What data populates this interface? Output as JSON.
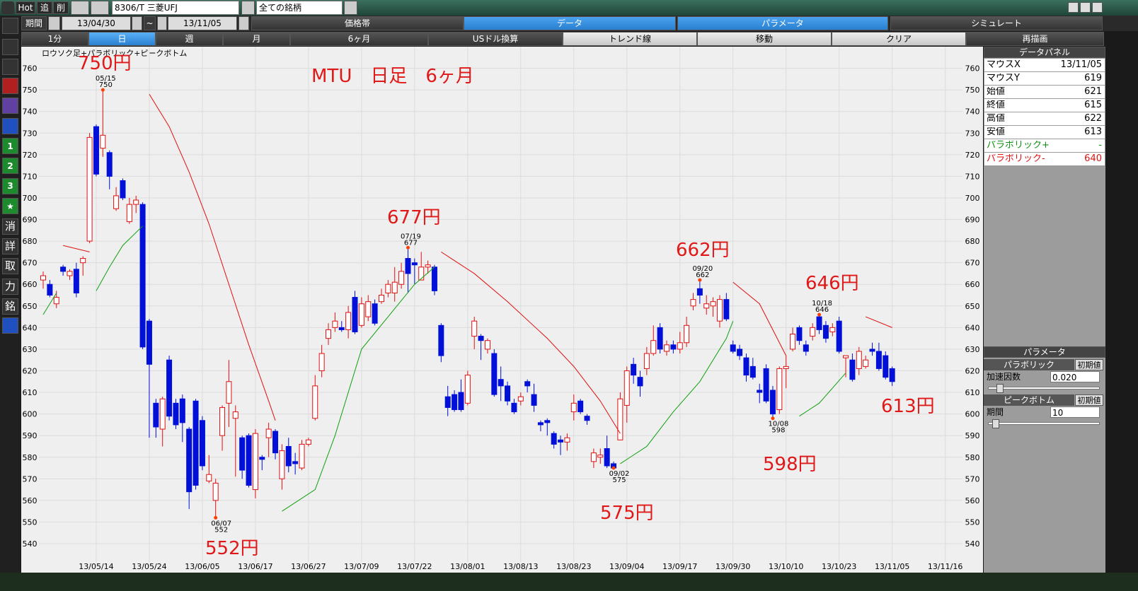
{
  "toolbar": {
    "hot": "Hot",
    "add": "追",
    "del": "削",
    "symbol": "8306/T 三菱UFJ",
    "universe": "全ての銘柄"
  },
  "period_bar": {
    "label": "期間",
    "from": "13/04/30",
    "sep": "~",
    "to": "13/11/05",
    "tabs": [
      "価格帯",
      "データ",
      "パラメータ",
      "シミュレート"
    ]
  },
  "buttons": [
    "1分",
    "日",
    "週",
    "月",
    "6ヶ月",
    "USドル換算",
    "トレンド線",
    "移動",
    "クリア",
    "再描画"
  ],
  "sidebar": [
    "1",
    "2",
    "3",
    "★",
    "消",
    "詳",
    "取",
    "力",
    "銘"
  ],
  "chart_data": {
    "type": "candlestick",
    "title": "ロウソク足+パラボリック+ピークボトム",
    "up_color": "#e01010",
    "down_color": "#0010d8",
    "sar_plus_color": "#10a010",
    "sar_minus_color": "#e01010",
    "peak_color": "#ff4000",
    "ylim": [
      531.5,
      770
    ],
    "yticks": [
      540,
      550,
      560,
      570,
      580,
      590,
      600,
      610,
      620,
      630,
      640,
      650,
      660,
      670,
      680,
      690,
      700,
      710,
      720,
      730,
      740,
      750,
      760
    ],
    "xlim": [
      -0.64,
      138.6
    ],
    "xticks": [
      {
        "value": 8,
        "label": "13/05/14"
      },
      {
        "value": 16,
        "label": "13/05/24"
      },
      {
        "value": 24,
        "label": "13/06/05"
      },
      {
        "value": 32,
        "label": "13/06/17"
      },
      {
        "value": 40,
        "label": "13/06/27"
      },
      {
        "value": 48,
        "label": "13/07/09"
      },
      {
        "value": 56,
        "label": "13/07/22"
      },
      {
        "value": 64,
        "label": "13/08/01"
      },
      {
        "value": 72,
        "label": "13/08/13"
      },
      {
        "value": 80,
        "label": "13/08/23"
      },
      {
        "value": 88,
        "label": "13/09/04"
      },
      {
        "value": 96,
        "label": "13/09/17"
      },
      {
        "value": 104,
        "label": "13/09/30"
      },
      {
        "value": 112,
        "label": "13/10/10"
      },
      {
        "value": 120,
        "label": "13/10/23"
      },
      {
        "value": 128,
        "label": "13/11/05"
      },
      {
        "value": 136,
        "label": "13/11/16"
      }
    ],
    "candles": [
      [
        662,
        666,
        658,
        664
      ],
      [
        660,
        662,
        654,
        655
      ],
      [
        651,
        657,
        649,
        654
      ],
      [
        668,
        669,
        664,
        666
      ],
      [
        664,
        667,
        662,
        666
      ],
      [
        667,
        670,
        654,
        656
      ],
      [
        670,
        673,
        664,
        672
      ],
      [
        680,
        730,
        679,
        728
      ],
      [
        733,
        734,
        710,
        711
      ],
      [
        723,
        750,
        719,
        729
      ],
      [
        721,
        722,
        704,
        710
      ],
      [
        695,
        705,
        694,
        701
      ],
      [
        708,
        709,
        699,
        700
      ],
      [
        689,
        700,
        688,
        697
      ],
      [
        697,
        701,
        693,
        699
      ],
      [
        697,
        698,
        630,
        631
      ],
      [
        643,
        644,
        589,
        623
      ],
      [
        605,
        607,
        589,
        594
      ],
      [
        593,
        608,
        585,
        607
      ],
      [
        625,
        627,
        597,
        599
      ],
      [
        605,
        607,
        593,
        595
      ],
      [
        607,
        609,
        587,
        596
      ],
      [
        593,
        594,
        556,
        564
      ],
      [
        606,
        607,
        565,
        567
      ],
      [
        597,
        599,
        574,
        576
      ],
      [
        569,
        581,
        568,
        572
      ],
      [
        560,
        570,
        552,
        568
      ],
      [
        590,
        604,
        583,
        603
      ],
      [
        605,
        625,
        594,
        615
      ],
      [
        598,
        604,
        571,
        601
      ],
      [
        589,
        590,
        570,
        574
      ],
      [
        590,
        591,
        566,
        567
      ],
      [
        565,
        593,
        561,
        591
      ],
      [
        580,
        581,
        574,
        579
      ],
      [
        589,
        596,
        580,
        593
      ],
      [
        592,
        593,
        579,
        582
      ],
      [
        570,
        586,
        565,
        583
      ],
      [
        585,
        589,
        573,
        576
      ],
      [
        578,
        582,
        572,
        577
      ],
      [
        575,
        588,
        574,
        586
      ],
      [
        586,
        589,
        585,
        588
      ],
      [
        598,
        618,
        597,
        613
      ],
      [
        620,
        632,
        617,
        628
      ],
      [
        635,
        642,
        632,
        639
      ],
      [
        640,
        647,
        638,
        643
      ],
      [
        640,
        643,
        638,
        639
      ],
      [
        639,
        650,
        635,
        647
      ],
      [
        654,
        657,
        637,
        638
      ],
      [
        641,
        654,
        640,
        651
      ],
      [
        645,
        655,
        643,
        652
      ],
      [
        651,
        653,
        641,
        642
      ],
      [
        652,
        658,
        651,
        655
      ],
      [
        656,
        662,
        654,
        660
      ],
      [
        656,
        668,
        652,
        661
      ],
      [
        660,
        670,
        658,
        666
      ],
      [
        672,
        677,
        656,
        665
      ],
      [
        670,
        672,
        660,
        669
      ],
      [
        662,
        675,
        662,
        668
      ],
      [
        668,
        671,
        665,
        669
      ],
      [
        668,
        669,
        655,
        657
      ],
      [
        641,
        642,
        624,
        627
      ],
      [
        608,
        613,
        599,
        603
      ],
      [
        609,
        611,
        601,
        602
      ],
      [
        610,
        616,
        601,
        602
      ],
      [
        605,
        620,
        604,
        618
      ],
      [
        636,
        645,
        630,
        643
      ],
      [
        636,
        637,
        625,
        634
      ],
      [
        630,
        635,
        628,
        634
      ],
      [
        628,
        630,
        608,
        609
      ],
      [
        616,
        622,
        606,
        613
      ],
      [
        613,
        615,
        604,
        606
      ],
      [
        605,
        607,
        600,
        601
      ],
      [
        606,
        610,
        604,
        608
      ],
      [
        615,
        616,
        610,
        613
      ],
      [
        609,
        614,
        601,
        604
      ],
      [
        596,
        597,
        592,
        595
      ],
      [
        597,
        598,
        590,
        596
      ],
      [
        591,
        592,
        584,
        586
      ],
      [
        588,
        590,
        581,
        587
      ],
      [
        587,
        591,
        583,
        589
      ],
      [
        601,
        609,
        597,
        605
      ],
      [
        606,
        607,
        600,
        601
      ],
      [
        599,
        600,
        595,
        597
      ],
      [
        578,
        584,
        575,
        582
      ],
      [
        580,
        584,
        577,
        581
      ],
      [
        584,
        590,
        575,
        576
      ],
      [
        577,
        578,
        575,
        575
      ],
      [
        588,
        610,
        588,
        607
      ],
      [
        604,
        622,
        596,
        620
      ],
      [
        623,
        626,
        614,
        618
      ],
      [
        617,
        620,
        608,
        613
      ],
      [
        621,
        631,
        618,
        628
      ],
      [
        628,
        641,
        627,
        634
      ],
      [
        640,
        642,
        628,
        630
      ],
      [
        629,
        634,
        627,
        632
      ],
      [
        632,
        634,
        628,
        630
      ],
      [
        630,
        638,
        628,
        633
      ],
      [
        633,
        645,
        631,
        641
      ],
      [
        650,
        656,
        648,
        653
      ],
      [
        658,
        662,
        651,
        655
      ],
      [
        649,
        655,
        646,
        651
      ],
      [
        650,
        654,
        645,
        652
      ],
      [
        643,
        655,
        640,
        653
      ],
      [
        653,
        656,
        643,
        644
      ],
      [
        632,
        634,
        628,
        629
      ],
      [
        630,
        632,
        625,
        627
      ],
      [
        626,
        628,
        615,
        618
      ],
      [
        622,
        626,
        616,
        617
      ],
      [
        611,
        614,
        605,
        610
      ],
      [
        621,
        623,
        605,
        606
      ],
      [
        611,
        613,
        598,
        600
      ],
      [
        602,
        622,
        600,
        621
      ],
      [
        621,
        627,
        612,
        622
      ],
      [
        630,
        640,
        629,
        637
      ],
      [
        640,
        641,
        632,
        634
      ],
      [
        632,
        634,
        627,
        629
      ],
      [
        636,
        642,
        634,
        640
      ],
      [
        645,
        646,
        637,
        639
      ],
      [
        641,
        643,
        633,
        635
      ],
      [
        638,
        642,
        636,
        640
      ],
      [
        643,
        645,
        628,
        629
      ],
      [
        626,
        627,
        617,
        627
      ],
      [
        625,
        628,
        615,
        616
      ],
      [
        621,
        631,
        618,
        629
      ],
      [
        622,
        627,
        621,
        625
      ],
      [
        630,
        633,
        627,
        629
      ],
      [
        629,
        633,
        620,
        621
      ],
      [
        627,
        629,
        616,
        617
      ],
      [
        621,
        622,
        613,
        615
      ]
    ],
    "sar_plus": [
      {
        "x": [
          0,
          1,
          2
        ],
        "values": [
          646,
          651,
          656
        ]
      },
      {
        "x": [
          8,
          10,
          12,
          15
        ],
        "values": [
          657,
          668,
          678,
          687
        ]
      },
      {
        "x": [
          36,
          41,
          44,
          48,
          52,
          56,
          59
        ],
        "values": [
          555,
          565,
          590,
          630,
          645,
          660,
          668
        ]
      },
      {
        "x": [
          87,
          91,
          95,
          99,
          103,
          104
        ],
        "values": [
          577,
          585,
          601,
          615,
          635,
          643
        ]
      },
      {
        "x": [
          114,
          117,
          121
        ],
        "values": [
          599,
          605,
          619
        ]
      }
    ],
    "sar_minus": [
      {
        "x": [
          3,
          7
        ],
        "values": [
          678,
          675
        ]
      },
      {
        "x": [
          16,
          19,
          22,
          25,
          28,
          31,
          34,
          35
        ],
        "values": [
          748,
          733,
          712,
          688,
          660,
          632,
          606,
          597
        ]
      },
      {
        "x": [
          60,
          65,
          70,
          76,
          80,
          84,
          87
        ],
        "values": [
          675,
          665,
          652,
          635,
          622,
          606,
          591
        ]
      },
      {
        "x": [
          104,
          108,
          112
        ],
        "values": [
          661,
          651,
          627
        ]
      },
      {
        "x": [
          124,
          128
        ],
        "values": [
          645,
          640
        ]
      }
    ],
    "peaks": [
      {
        "x": 9,
        "kind": "high",
        "date": "05/15",
        "value": 750
      },
      {
        "x": 26,
        "kind": "low",
        "date": "06/07",
        "value": 552
      },
      {
        "x": 55,
        "kind": "high",
        "date": "07/19",
        "value": 677
      },
      {
        "x": 86,
        "kind": "low",
        "date": "09/02",
        "value": 575
      },
      {
        "x": 99,
        "kind": "high",
        "date": "09/20",
        "value": 662
      },
      {
        "x": 110,
        "kind": "low",
        "date": "10/08",
        "value": 598
      },
      {
        "x": 117,
        "kind": "high",
        "date": "10/18",
        "value": 646
      }
    ],
    "annotations": [
      "750円",
      "MTU　日足　6ヶ月",
      "677円",
      "552円",
      "575円",
      "662円",
      "646円",
      "598円",
      "613円"
    ]
  },
  "data_panel": {
    "title": "データパネル",
    "rows": [
      [
        "マウスX",
        "13/11/05"
      ],
      [
        "マウスY",
        619
      ],
      [
        "始値",
        621
      ],
      [
        "終値",
        615
      ],
      [
        "高値",
        622
      ],
      [
        "安値",
        613
      ],
      [
        "パラボリック+",
        "-"
      ],
      [
        "パラボリック-",
        640
      ]
    ]
  },
  "param_panel": {
    "title": "パラメータ",
    "sections": [
      {
        "name": "パラボリック",
        "reset": "初期値",
        "field": "加速因数",
        "value": "0.020"
      },
      {
        "name": "ピークボトム",
        "reset": "初期値",
        "field": "期間",
        "value": 10
      }
    ]
  }
}
